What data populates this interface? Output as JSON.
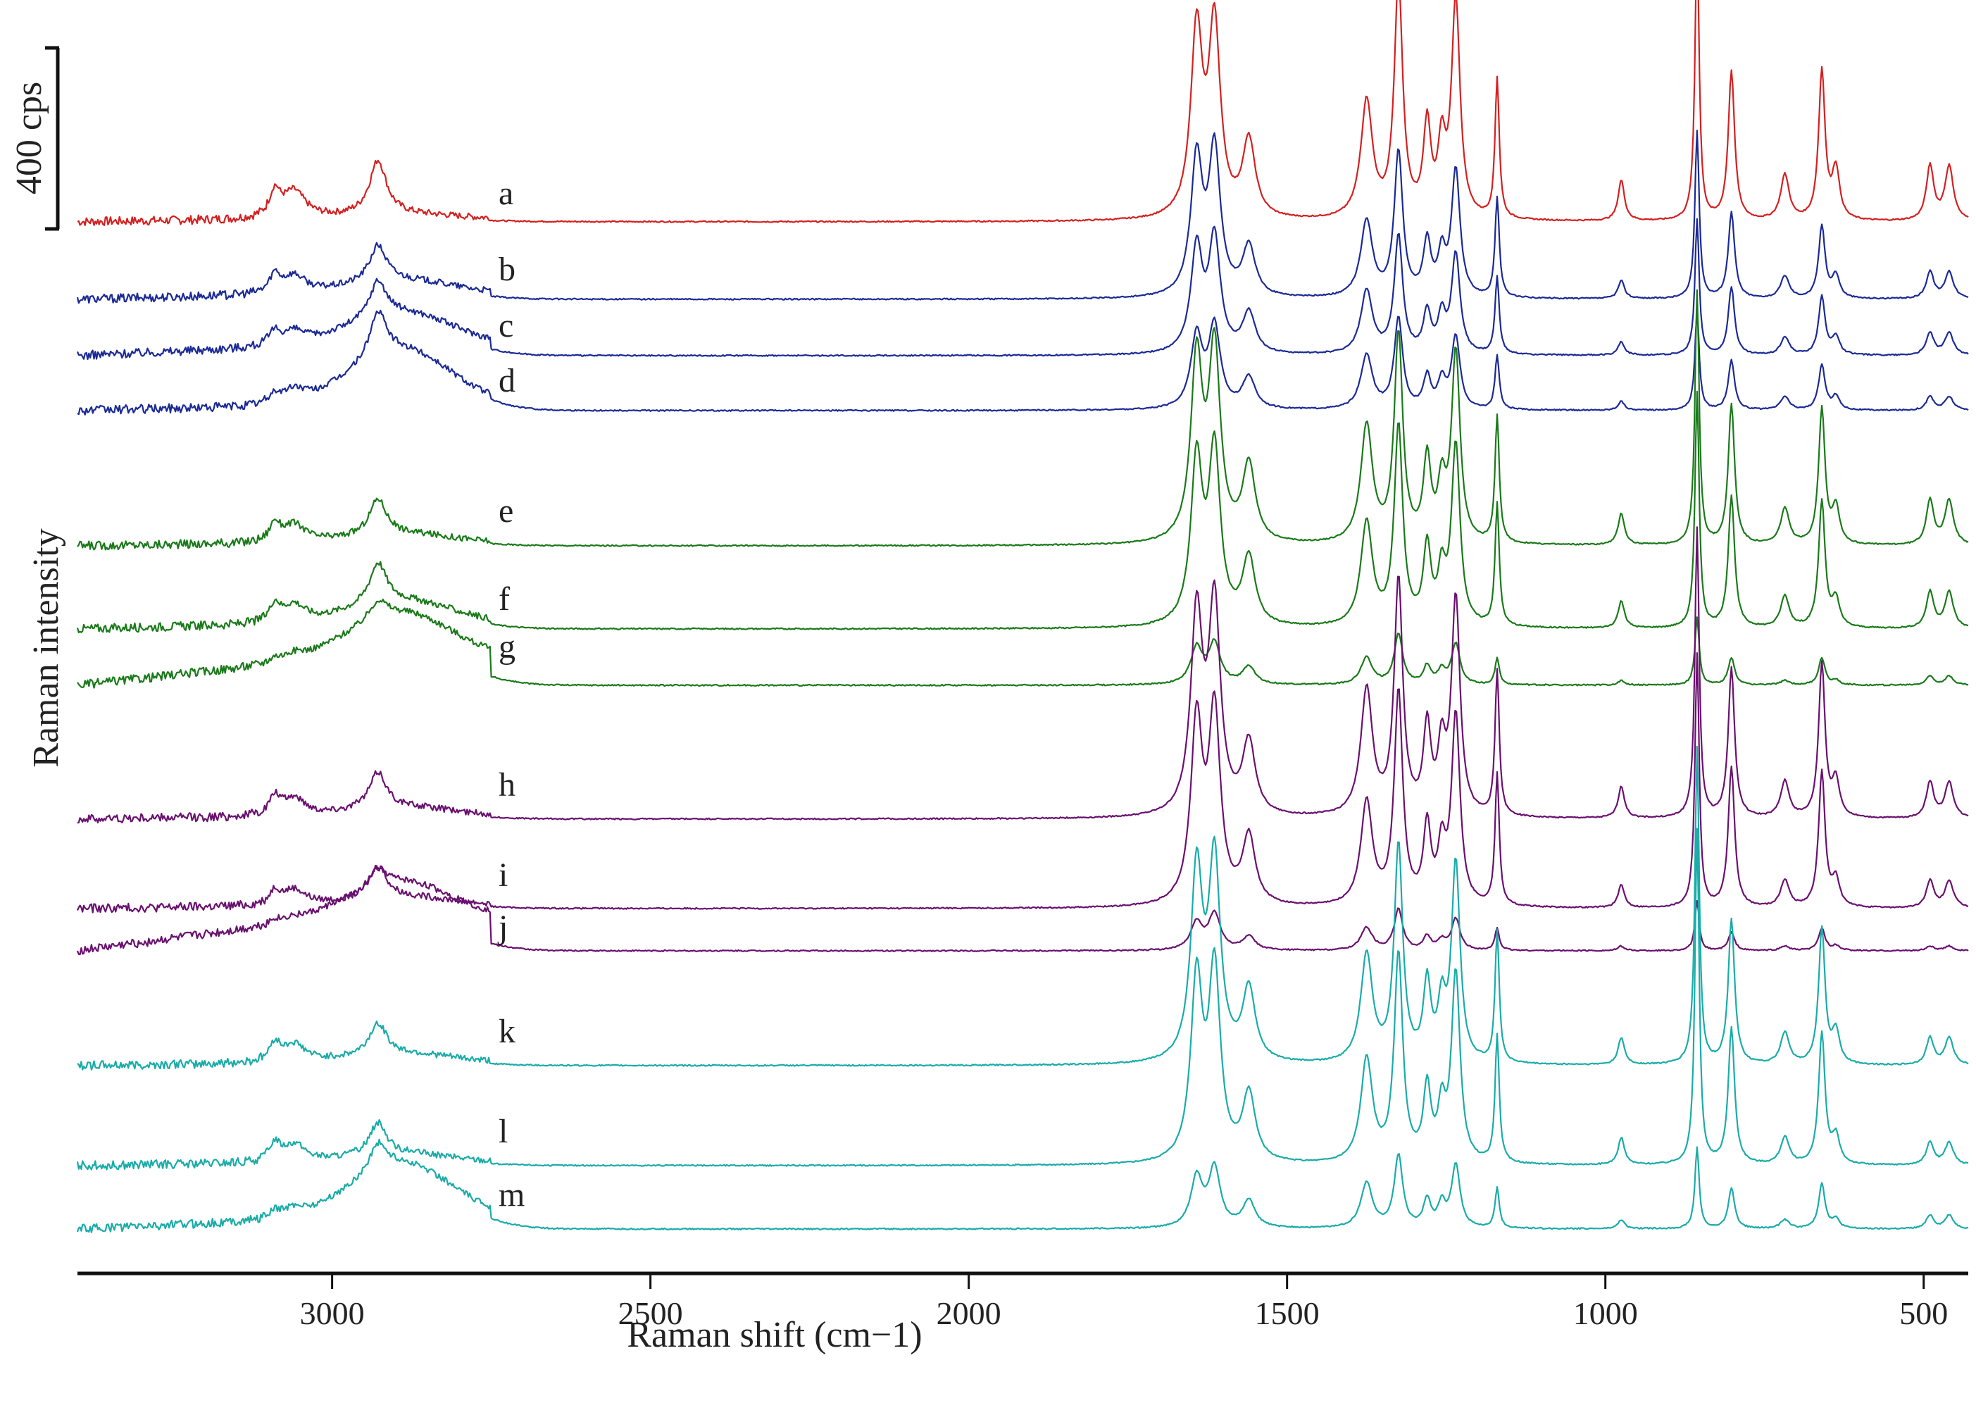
{
  "chart_data": {
    "type": "line",
    "title": "",
    "xlabel": "Raman shift (cm−1)",
    "ylabel": "Raman intensity",
    "x_reversed": true,
    "xlim": [
      3400,
      430
    ],
    "x_ticks": [
      3000,
      2500,
      2000,
      1500,
      1000,
      500
    ],
    "x_tick_labels": [
      "3000",
      "2500",
      "2000",
      "1500",
      "1000",
      "500"
    ],
    "scale_bar": {
      "label": "400 cps",
      "value": 400,
      "unit": "cps"
    },
    "grid": false,
    "colors": {
      "a": "#d42020",
      "blue": "#1b2a96",
      "green": "#1a7a1a",
      "purple": "#6a1070",
      "cyan": "#1aaca8"
    },
    "peak_positions": [
      3090,
      3060,
      2928,
      1642,
      1614,
      1560,
      1375,
      1325,
      1280,
      1257,
      1235,
      1170,
      975,
      856,
      802,
      718,
      660,
      638,
      490,
      460
    ],
    "series": [
      {
        "name": "a",
        "label": "a",
        "color": "#d42020",
        "scale": 1.0,
        "baseline_intensity": 0,
        "lowfreq_bump": 0.05,
        "ch_bump": 0.05,
        "peaks": [
          55,
          60,
          120,
          410,
          420,
          170,
          260,
          520,
          200,
          150,
          480,
          310,
          90,
          620,
          330,
          100,
          330,
          110,
          120,
          120
        ]
      },
      {
        "name": "b",
        "label": "b",
        "color": "#1b2a96",
        "scale": 0.9,
        "baseline_intensity": 0,
        "lowfreq_bump": 0.1,
        "ch_bump": 0.15,
        "peaks": [
          40,
          40,
          80,
          300,
          320,
          110,
          170,
          320,
          120,
          90,
          280,
          220,
          40,
          370,
          190,
          50,
          160,
          50,
          60,
          60
        ]
      },
      {
        "name": "c",
        "label": "c",
        "color": "#1b2a96",
        "scale": 0.7,
        "baseline_intensity": 0,
        "lowfreq_bump": 0.2,
        "ch_bump": 0.35,
        "peaks": [
          30,
          30,
          80,
          230,
          250,
          90,
          140,
          260,
          90,
          80,
          220,
          170,
          30,
          300,
          150,
          40,
          130,
          40,
          50,
          50
        ]
      },
      {
        "name": "d",
        "label": "d",
        "color": "#1b2a96",
        "scale": 0.5,
        "baseline_intensity": 0,
        "lowfreq_bump": 0.1,
        "ch_bump": 0.6,
        "peaks": [
          20,
          30,
          100,
          160,
          180,
          70,
          120,
          200,
          70,
          60,
          160,
          120,
          20,
          220,
          110,
          30,
          100,
          30,
          30,
          30
        ]
      },
      {
        "name": "e",
        "label": "e",
        "color": "#1a7a1a",
        "scale": 1.0,
        "baseline_intensity": 0,
        "lowfreq_bump": 0.05,
        "ch_bump": 0.1,
        "peaks": [
          40,
          40,
          80,
          400,
          420,
          170,
          260,
          460,
          180,
          120,
          420,
          280,
          70,
          560,
          310,
          80,
          300,
          80,
          100,
          100
        ]
      },
      {
        "name": "f",
        "label": "f",
        "color": "#1a7a1a",
        "scale": 0.95,
        "baseline_intensity": 0,
        "lowfreq_bump": 0.1,
        "ch_bump": 0.25,
        "peaks": [
          40,
          40,
          90,
          360,
          380,
          150,
          230,
          440,
          170,
          110,
          400,
          270,
          60,
          520,
          290,
          70,
          280,
          60,
          80,
          80
        ]
      },
      {
        "name": "g",
        "label": "g",
        "color": "#1a7a1a",
        "scale": 0.35,
        "baseline_intensity": 0,
        "lowfreq_bump": 0.5,
        "ch_bump": 0.5,
        "peaks": [
          10,
          15,
          40,
          80,
          90,
          40,
          60,
          110,
          40,
          30,
          90,
          60,
          10,
          150,
          60,
          10,
          60,
          10,
          20,
          20
        ]
      },
      {
        "name": "h",
        "label": "h",
        "color": "#6a1070",
        "scale": 1.0,
        "baseline_intensity": 0,
        "lowfreq_bump": 0.05,
        "ch_bump": 0.1,
        "peaks": [
          40,
          40,
          80,
          440,
          460,
          160,
          280,
          520,
          190,
          140,
          480,
          320,
          70,
          640,
          330,
          80,
          340,
          80,
          80,
          80
        ]
      },
      {
        "name": "i",
        "label": "i",
        "color": "#6a1070",
        "scale": 0.9,
        "baseline_intensity": 0,
        "lowfreq_bump": 0.05,
        "ch_bump": 0.1,
        "peaks": [
          30,
          35,
          70,
          400,
          420,
          150,
          230,
          470,
          170,
          120,
          420,
          290,
          50,
          560,
          310,
          60,
          300,
          60,
          60,
          60
        ]
      },
      {
        "name": "j",
        "label": "j",
        "color": "#6a1070",
        "scale": 0.3,
        "baseline_intensity": 0,
        "lowfreq_bump": 0.6,
        "ch_bump": 0.4,
        "peaks": [
          10,
          10,
          40,
          60,
          80,
          30,
          50,
          90,
          30,
          20,
          70,
          50,
          10,
          110,
          40,
          10,
          50,
          10,
          10,
          10
        ]
      },
      {
        "name": "k",
        "label": "k",
        "color": "#1aaca8",
        "scale": 1.0,
        "baseline_intensity": 0,
        "lowfreq_bump": 0.05,
        "ch_bump": 0.1,
        "peaks": [
          40,
          40,
          70,
          420,
          440,
          160,
          240,
          480,
          170,
          120,
          440,
          290,
          60,
          700,
          320,
          70,
          300,
          70,
          60,
          60
        ]
      },
      {
        "name": "l",
        "label": "l",
        "color": "#1aaca8",
        "scale": 0.95,
        "baseline_intensity": 0,
        "lowfreq_bump": 0.05,
        "ch_bump": 0.1,
        "peaks": [
          40,
          40,
          70,
          400,
          420,
          150,
          230,
          460,
          160,
          110,
          420,
          280,
          60,
          740,
          300,
          60,
          290,
          60,
          50,
          50
        ]
      },
      {
        "name": "m",
        "label": "m",
        "color": "#1aaca8",
        "scale": 0.45,
        "baseline_intensity": 0,
        "lowfreq_bump": 0.2,
        "ch_bump": 0.6,
        "peaks": [
          15,
          20,
          60,
          110,
          130,
          60,
          100,
          160,
          60,
          50,
          140,
          90,
          20,
          180,
          90,
          20,
          100,
          20,
          30,
          30
        ]
      }
    ]
  }
}
